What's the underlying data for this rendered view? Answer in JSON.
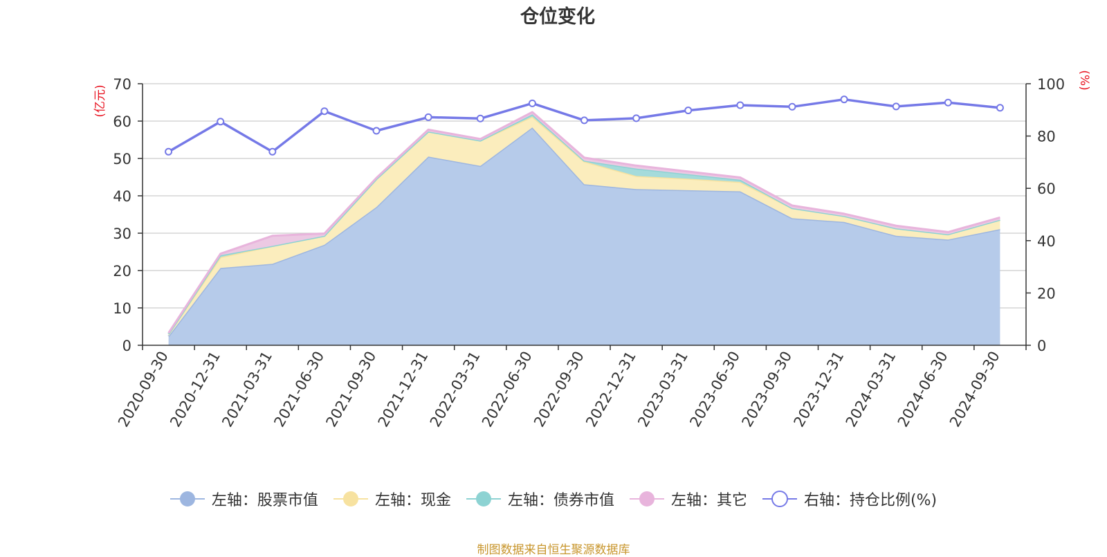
{
  "chart_data": {
    "type": "area",
    "title": "仓位变化",
    "left_axis_unit": "(亿元)",
    "right_axis_unit": "(%)",
    "ylim_left": [
      0,
      70
    ],
    "yticks_left": [
      0,
      10,
      20,
      30,
      40,
      50,
      60,
      70
    ],
    "ylim_right": [
      0,
      100
    ],
    "yticks_right": [
      0,
      20,
      40,
      60,
      80,
      100
    ],
    "grid": true,
    "legend_position": "bottom",
    "categories": [
      "2020-09-30",
      "2020-12-31",
      "2021-03-31",
      "2021-06-30",
      "2021-09-30",
      "2021-12-31",
      "2022-03-31",
      "2022-06-30",
      "2022-09-30",
      "2022-12-31",
      "2023-03-31",
      "2023-06-30",
      "2023-09-30",
      "2023-12-31",
      "2024-03-31",
      "2024-06-30",
      "2024-09-30"
    ],
    "stacked_series": [
      {
        "name": "左轴：股票市值",
        "axis": "left",
        "color": "#9db6e0",
        "fill": "#b6cbea",
        "values": [
          2.4,
          20.7,
          21.8,
          26.9,
          37.0,
          50.5,
          48.0,
          58.3,
          43.1,
          41.8,
          41.5,
          41.2,
          34.0,
          33.0,
          29.3,
          28.3,
          31.1
        ]
      },
      {
        "name": "左轴：现金",
        "axis": "left",
        "color": "#f7e2a0",
        "fill": "#fbedbd",
        "values": [
          0.6,
          2.9,
          4.8,
          2.4,
          7.5,
          6.7,
          6.8,
          2.9,
          6.1,
          3.5,
          3.1,
          2.5,
          2.7,
          1.6,
          2.0,
          1.4,
          2.5
        ]
      },
      {
        "name": "左轴：债券市值",
        "axis": "left",
        "color": "#8dd3d3",
        "fill": "#a5dbdb",
        "values": [
          0,
          0.5,
          0,
          0,
          0,
          0,
          0,
          0.6,
          0.2,
          2.0,
          1.2,
          0.6,
          0,
          0,
          0,
          0,
          0
        ]
      },
      {
        "name": "左轴：其它",
        "axis": "left",
        "color": "#e8b4dc",
        "fill": "#ecc9e3",
        "values": [
          0.3,
          0.4,
          2.7,
          0.6,
          0.3,
          0.5,
          0.4,
          0.6,
          0.8,
          0.8,
          0.7,
          0.6,
          0.7,
          0.6,
          0.7,
          0.6,
          0.6
        ]
      }
    ],
    "line_series": {
      "name": "右轴：持仓比例(%)",
      "axis": "right",
      "color": "#7579e7",
      "values": [
        74.0,
        85.5,
        74.0,
        89.5,
        82.0,
        87.2,
        86.7,
        92.5,
        86.0,
        86.8,
        89.8,
        91.8,
        91.2,
        94.0,
        91.3,
        92.8,
        90.8
      ]
    }
  },
  "legend": [
    {
      "label": "左轴：股票市值",
      "color": "#9db6e0",
      "marker": "filled"
    },
    {
      "label": "左轴：现金",
      "color": "#f7e2a0",
      "marker": "filled"
    },
    {
      "label": "左轴：债券市值",
      "color": "#8dd3d3",
      "marker": "filled"
    },
    {
      "label": "左轴：其它",
      "color": "#e8b4dc",
      "marker": "filled"
    },
    {
      "label": "右轴：持仓比例(%)",
      "color": "#7579e7",
      "marker": "hollow"
    }
  ],
  "footer": "制图数据来自恒生聚源数据库",
  "colors": {
    "left_unit": "#e8121f",
    "right_unit": "#e8121f",
    "axis": "#333333",
    "grid": "#cccccc"
  }
}
